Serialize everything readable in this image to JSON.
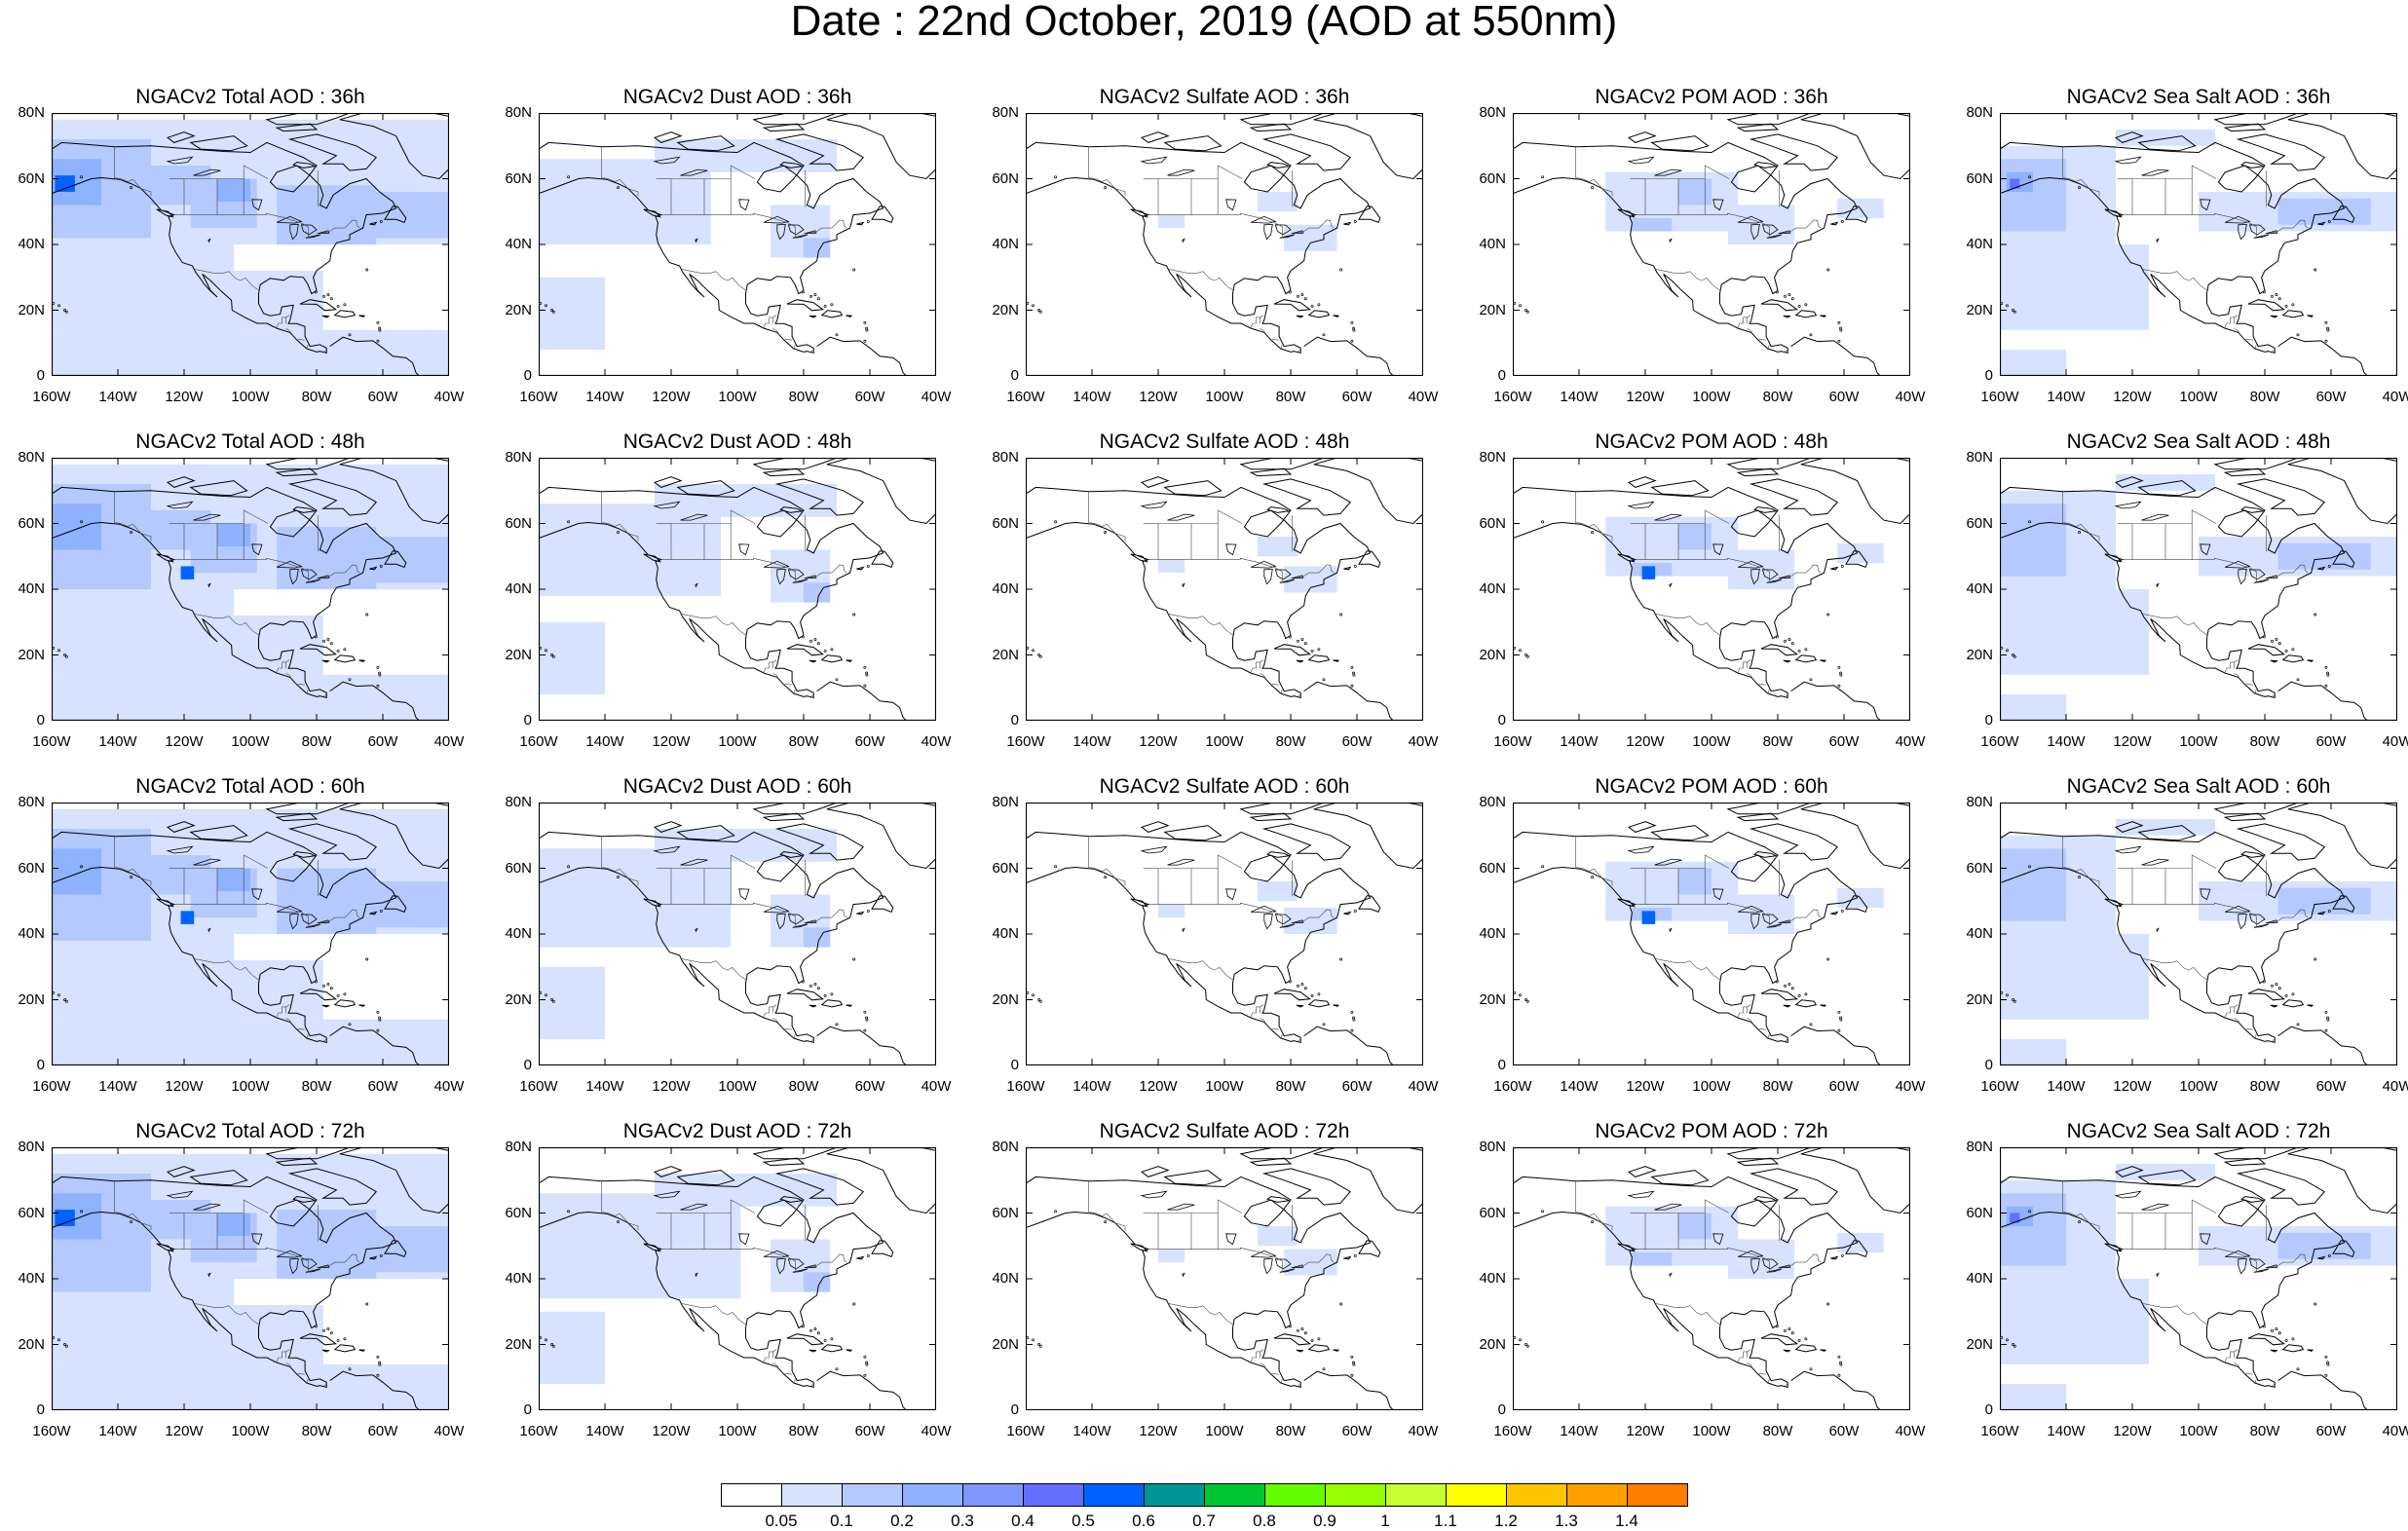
{
  "figure": {
    "title": "Date : 22nd October, 2019 (AOD at 550nm)"
  },
  "map_extent": {
    "lon": [
      -160,
      -40
    ],
    "lat": [
      0,
      80
    ]
  },
  "lat_ticks": [
    "80N",
    "60N",
    "40N",
    "20N",
    "0"
  ],
  "lon_ticks": [
    "160W",
    "140W",
    "120W",
    "100W",
    "80W",
    "60W",
    "40W"
  ],
  "rows": [
    {
      "lead": "36h",
      "titles": [
        "NGACv2 Total AOD : 36h",
        "NGACv2 Dust AOD : 36h",
        "NGACv2 Sulfate AOD : 36h",
        "NGACv2 POM AOD : 36h",
        "NGACv2 Sea Salt AOD : 36h"
      ]
    },
    {
      "lead": "48h",
      "titles": [
        "NGACv2 Total AOD : 48h",
        "NGACv2 Dust AOD : 48h",
        "NGACv2 Sulfate AOD : 48h",
        "NGACv2 POM AOD : 48h",
        "NGACv2 Sea Salt AOD : 48h"
      ]
    },
    {
      "lead": "60h",
      "titles": [
        "NGACv2 Total AOD : 60h",
        "NGACv2 Dust AOD : 60h",
        "NGACv2 Sulfate AOD : 60h",
        "NGACv2 POM AOD : 60h",
        "NGACv2 Sea Salt AOD : 60h"
      ]
    },
    {
      "lead": "72h",
      "titles": [
        "NGACv2 Total AOD : 72h",
        "NGACv2 Dust AOD : 72h",
        "NGACv2 Sulfate AOD : 72h",
        "NGACv2 POM AOD : 72h",
        "NGACv2 Sea Salt AOD : 72h"
      ]
    }
  ],
  "colorbar": {
    "labels": [
      "0.05",
      "0.1",
      "0.2",
      "0.3",
      "0.4",
      "0.5",
      "0.6",
      "0.7",
      "0.8",
      "0.9",
      "1",
      "1.1",
      "1.2",
      "1.3",
      "1.4"
    ],
    "colors": [
      "#ffffff",
      "#d6e2ff",
      "#b5c9ff",
      "#8eb2ff",
      "#7f96ff",
      "#6370ff",
      "#0063ff",
      "#009696",
      "#00c633",
      "#63ff00",
      "#96ff00",
      "#c6ff33",
      "#ffff00",
      "#ffc600",
      "#ffa000",
      "#ff7c00",
      "#ff1900"
    ]
  }
}
